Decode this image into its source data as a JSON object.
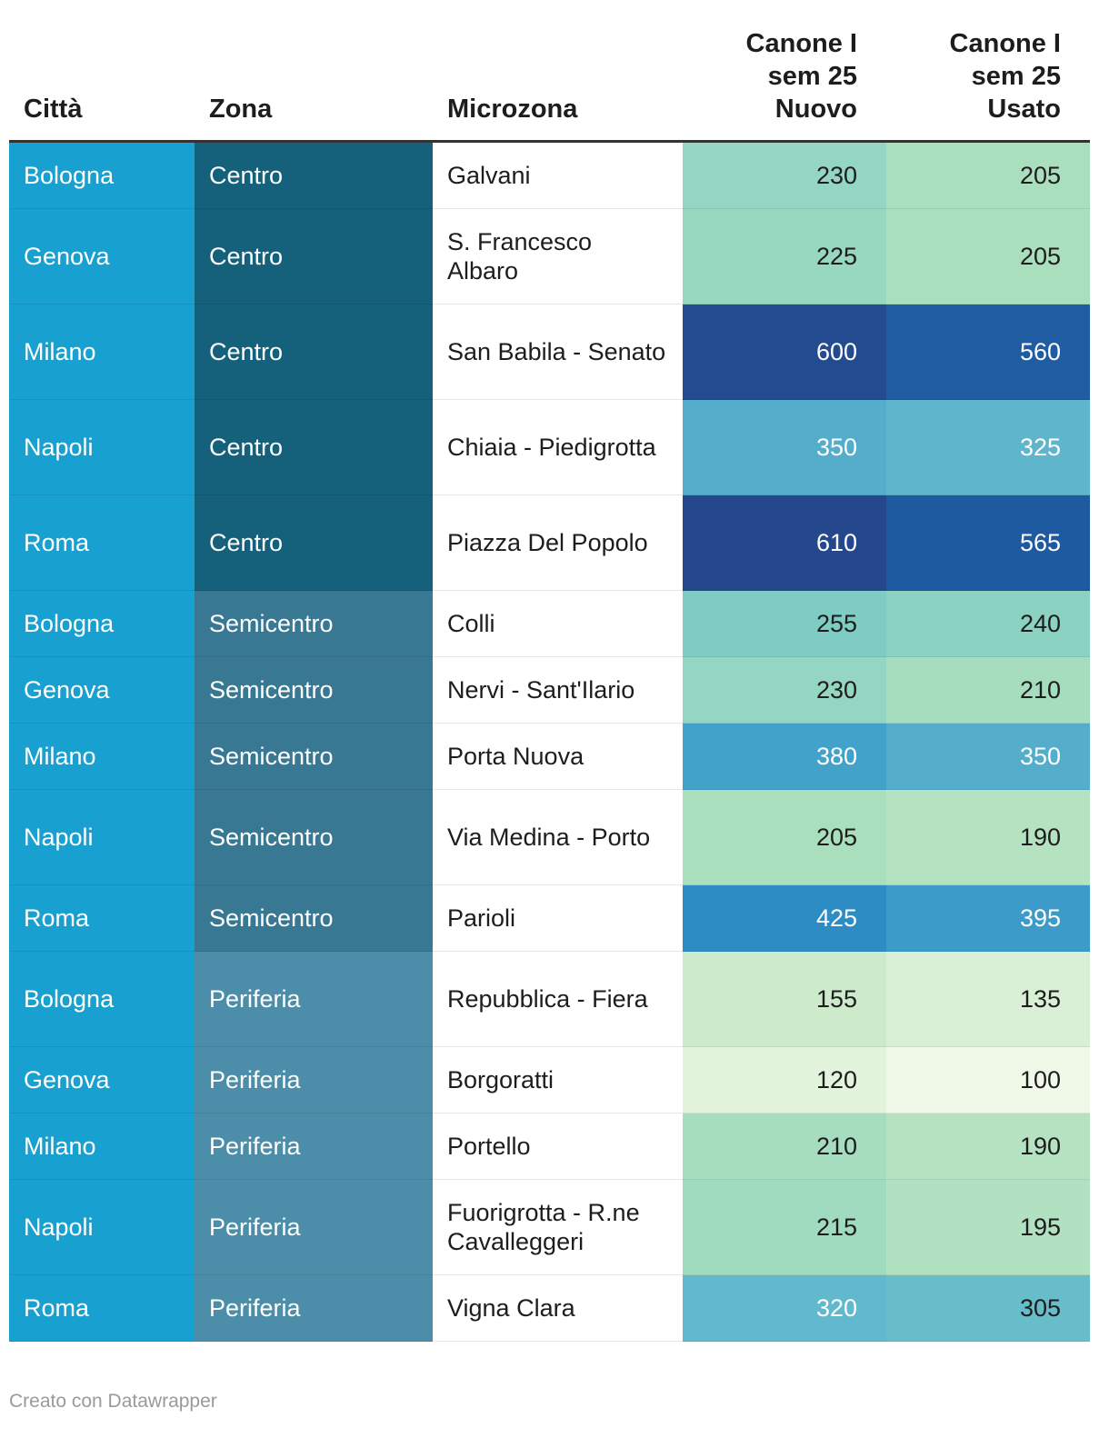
{
  "footer": "Creato con Datawrapper",
  "colors": {
    "citta": "#17a0d0",
    "zona": {
      "Centro": "#15607a",
      "Semicentro": "#387893",
      "Periferia": "#4c8ea9"
    },
    "scale_light": "#f0f9e8",
    "scale_dark": "#253494"
  },
  "chart_data": {
    "type": "table",
    "columns": [
      "Città",
      "Zona",
      "Microzona",
      "Canone I sem 25 Nuovo",
      "Canone I sem 25 Usato"
    ],
    "header_lines": {
      "nuovo": [
        "Canone I",
        "sem 25",
        "Nuovo"
      ],
      "usato": [
        "Canone I",
        "sem 25",
        "Usato"
      ]
    },
    "rows": [
      {
        "citta": "Bologna",
        "zona": "Centro",
        "microzona": "Galvani",
        "nuovo": 230,
        "usato": 205
      },
      {
        "citta": "Genova",
        "zona": "Centro",
        "microzona": "S. Francesco Albaro",
        "nuovo": 225,
        "usato": 205
      },
      {
        "citta": "Milano",
        "zona": "Centro",
        "microzona": "San Babila - Senato",
        "nuovo": 600,
        "usato": 560
      },
      {
        "citta": "Napoli",
        "zona": "Centro",
        "microzona": "Chiaia - Piedigrotta",
        "nuovo": 350,
        "usato": 325
      },
      {
        "citta": "Roma",
        "zona": "Centro",
        "microzona": "Piazza Del Popolo",
        "nuovo": 610,
        "usato": 565
      },
      {
        "citta": "Bologna",
        "zona": "Semicentro",
        "microzona": "Colli",
        "nuovo": 255,
        "usato": 240
      },
      {
        "citta": "Genova",
        "zona": "Semicentro",
        "microzona": "Nervi - Sant'Ilario",
        "nuovo": 230,
        "usato": 210
      },
      {
        "citta": "Milano",
        "zona": "Semicentro",
        "microzona": "Porta Nuova",
        "nuovo": 380,
        "usato": 350
      },
      {
        "citta": "Napoli",
        "zona": "Semicentro",
        "microzona": "Via Medina - Porto",
        "nuovo": 205,
        "usato": 190
      },
      {
        "citta": "Roma",
        "zona": "Semicentro",
        "microzona": "Parioli",
        "nuovo": 425,
        "usato": 395
      },
      {
        "citta": "Bologna",
        "zona": "Periferia",
        "microzona": "Repubblica - Fiera",
        "nuovo": 155,
        "usato": 135
      },
      {
        "citta": "Genova",
        "zona": "Periferia",
        "microzona": "Borgoratti",
        "nuovo": 120,
        "usato": 100
      },
      {
        "citta": "Milano",
        "zona": "Periferia",
        "microzona": "Portello",
        "nuovo": 210,
        "usato": 190
      },
      {
        "citta": "Napoli",
        "zona": "Periferia",
        "microzona": "Fuorigrotta - R.ne Cavalleggeri",
        "nuovo": 215,
        "usato": 195
      },
      {
        "citta": "Roma",
        "zona": "Periferia",
        "microzona": "Vigna Clara",
        "nuovo": 320,
        "usato": 305
      }
    ]
  }
}
